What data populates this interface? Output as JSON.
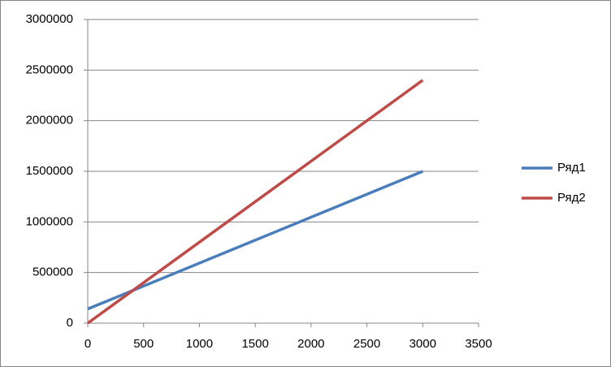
{
  "chart_data": {
    "type": "line",
    "x": [
      0,
      3000
    ],
    "series": [
      {
        "name": "Ряд1",
        "color": "#4a7ebb",
        "values": [
          140000,
          1500000
        ]
      },
      {
        "name": "Ряд2",
        "color": "#be4b48",
        "values": [
          0,
          2400000
        ]
      }
    ],
    "xlim": [
      0,
      3500
    ],
    "xticks": [
      0,
      500,
      1000,
      1500,
      2000,
      2500,
      3000,
      3500
    ],
    "ylim": [
      0,
      3000000
    ],
    "yticks": [
      0,
      500000,
      1000000,
      1500000,
      2000000,
      2500000,
      3000000
    ],
    "grid": true,
    "legend": "right"
  }
}
